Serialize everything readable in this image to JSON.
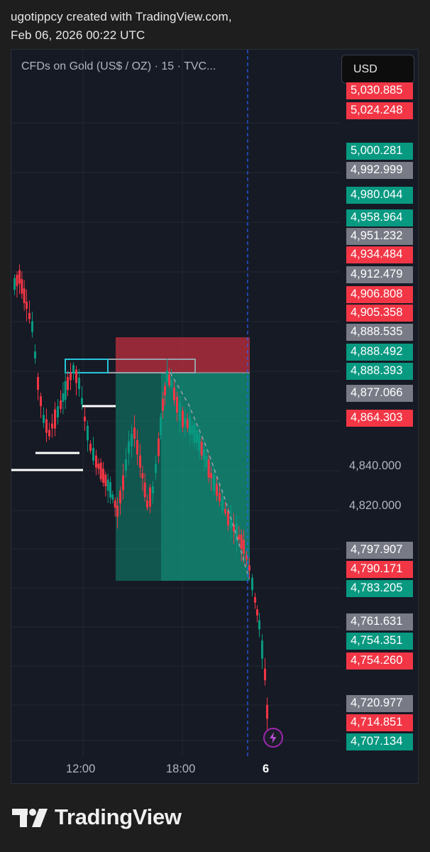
{
  "header": {
    "line1": "ugotippcy created with TradingView.com,",
    "line2": "Feb 06, 2026 00:22 UTC"
  },
  "chart": {
    "symbol": "CFDs on Gold (US$ / OZ) · 15 · TVC...",
    "currency_button": "USD",
    "up_color": "#089981",
    "down_color": "#f23645",
    "background": "#161a25",
    "price_tags": [
      {
        "text": "5,030.885",
        "color": "red"
      },
      {
        "text": "5,024.248",
        "color": "red"
      },
      {
        "text": "5,000.281",
        "color": "green"
      },
      {
        "text": "4,992.999",
        "color": "gray"
      },
      {
        "text": "4,980.044",
        "color": "green"
      },
      {
        "text": "4,958.964",
        "color": "green"
      },
      {
        "text": "4,951.232",
        "color": "gray"
      },
      {
        "text": "4,934.484",
        "color": "red"
      },
      {
        "text": "4,912.479",
        "color": "gray"
      },
      {
        "text": "4,906.808",
        "color": "red"
      },
      {
        "text": "4,905.358",
        "color": "red"
      },
      {
        "text": "4,888.535",
        "color": "gray"
      },
      {
        "text": "4,888.492",
        "color": "green"
      },
      {
        "text": "4,888.393",
        "color": "green"
      },
      {
        "text": "4,877.066",
        "color": "gray"
      },
      {
        "text": "4,864.303",
        "color": "red"
      },
      {
        "text": "4,797.907",
        "color": "gray"
      },
      {
        "text": "4,790.171",
        "color": "red"
      },
      {
        "text": "4,783.205",
        "color": "green"
      },
      {
        "text": "4,761.631",
        "color": "gray"
      },
      {
        "text": "4,754.351",
        "color": "green"
      },
      {
        "text": "4,754.260",
        "color": "red"
      },
      {
        "text": "4,720.977",
        "color": "gray"
      },
      {
        "text": "4,714.851",
        "color": "red"
      },
      {
        "text": "4,707.134",
        "color": "green"
      }
    ],
    "axis_labels": [
      "4,840.000",
      "4,820.000"
    ],
    "time_labels": [
      "12:00",
      "18:00",
      "6"
    ]
  },
  "footer": {
    "brand": "TradingView"
  }
}
